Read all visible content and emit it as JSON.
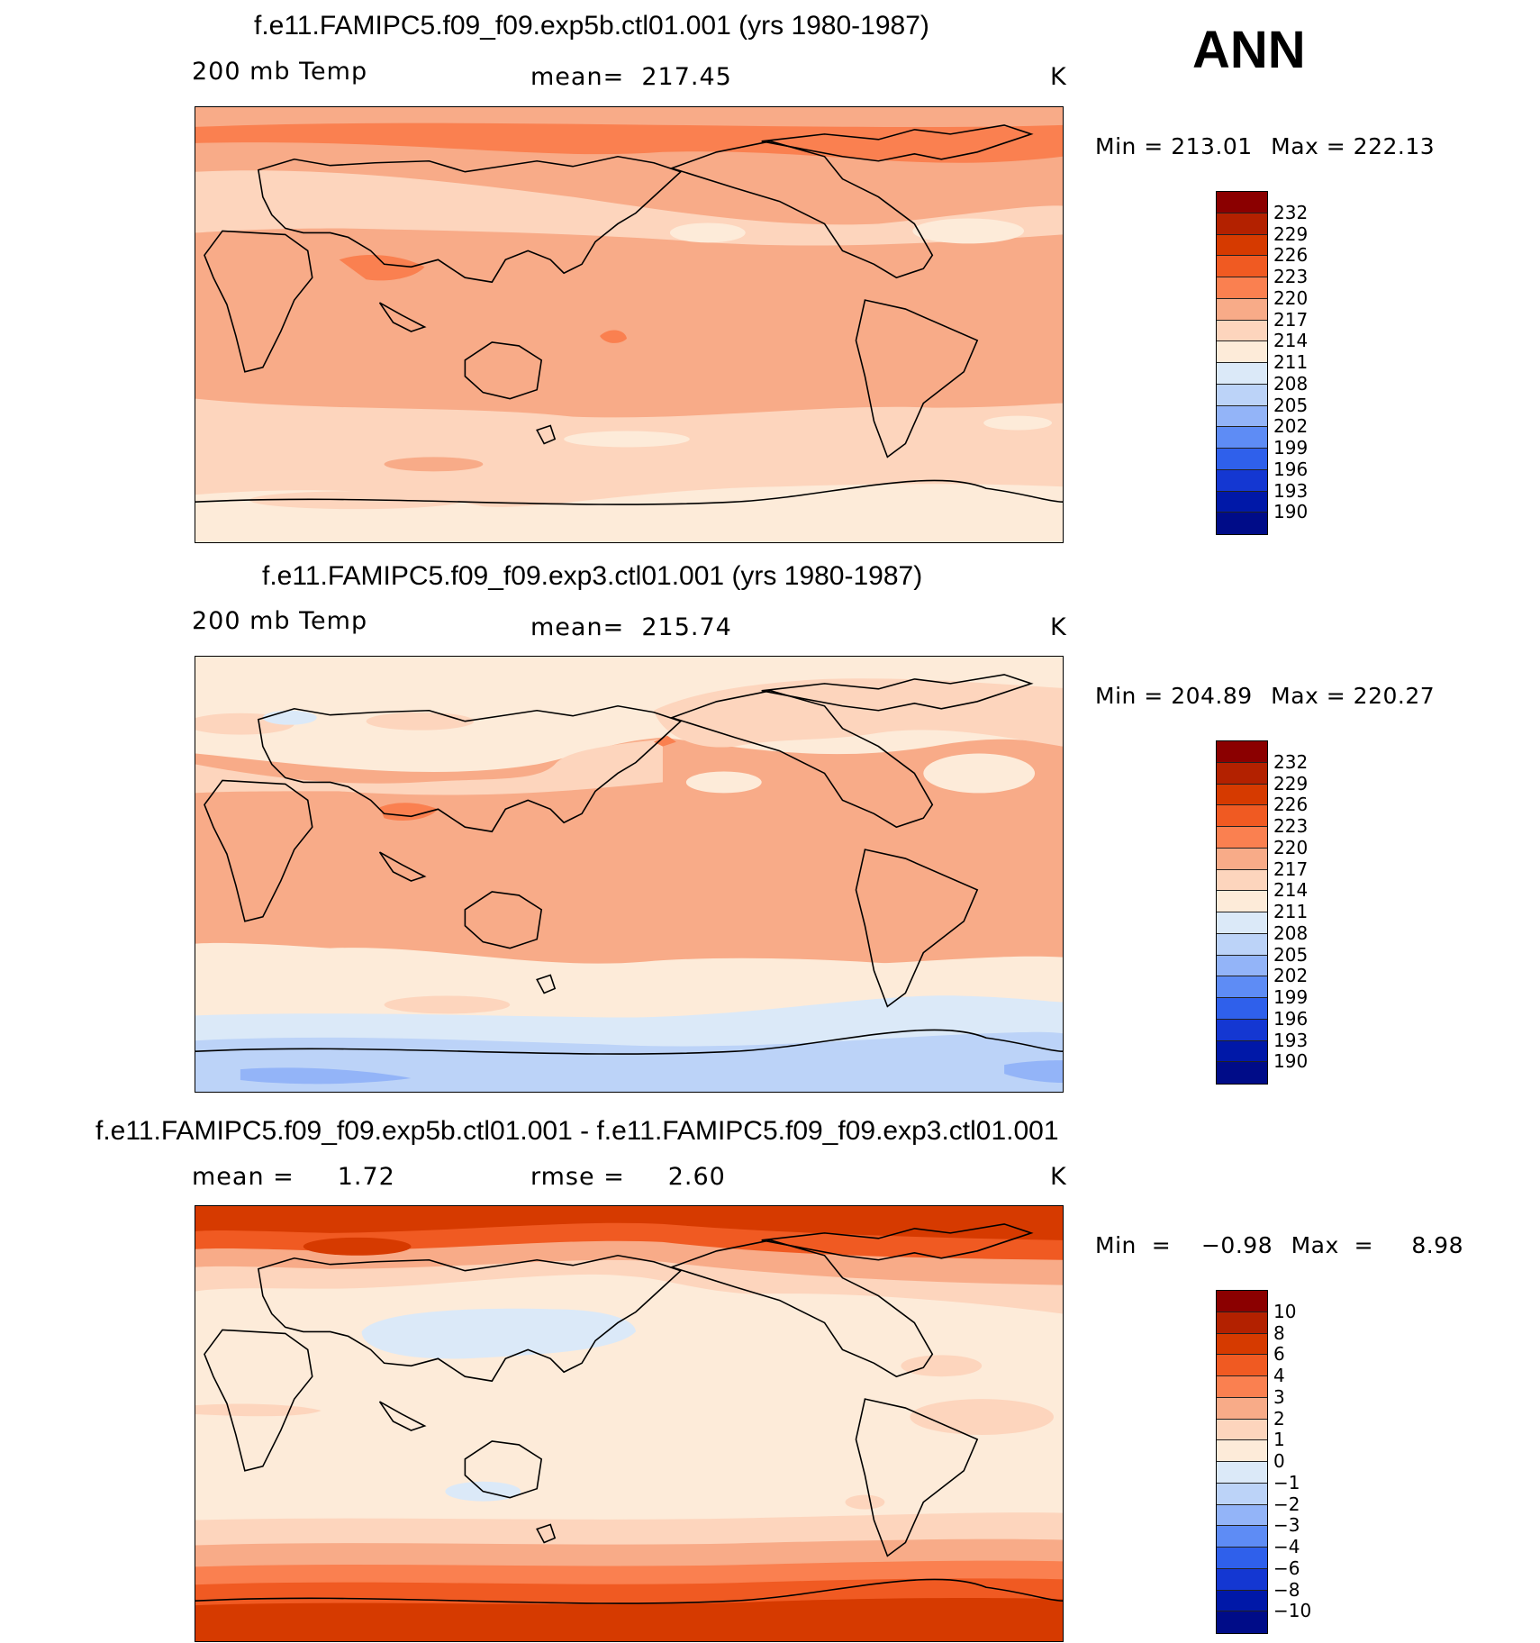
{
  "season": "ANN",
  "units": "K",
  "panels": [
    {
      "title": "f.e11.FAMIPC5.f09_f09.exp5b.ctl01.001 (yrs 1980-1987)",
      "variable": "200 mb Temp",
      "stat": "mean=  217.45",
      "units": "K",
      "min_label": "Min  =  213.01",
      "max_label": "Max  =  222.13",
      "colorbar_labels": [
        "232",
        "229",
        "226",
        "223",
        "220",
        "217",
        "214",
        "211",
        "208",
        "205",
        "202",
        "199",
        "196",
        "193",
        "190"
      ],
      "colorbar_colors": [
        "#8b0000",
        "#b32100",
        "#d63a00",
        "#f05a22",
        "#fa8050",
        "#f8ab88",
        "#fdd5bd",
        "#fdebd9",
        "#dbe9f8",
        "#bcd3f8",
        "#93b4f8",
        "#5e8cf5",
        "#2f60eb",
        "#1437d2",
        "#0018a8",
        "#000c88"
      ]
    },
    {
      "title": "f.e11.FAMIPC5.f09_f09.exp3.ctl01.001 (yrs 1980-1987)",
      "variable": "200 mb Temp",
      "stat": "mean=  215.74",
      "units": "K",
      "min_label": "Min  =  204.89",
      "max_label": "Max  =  220.27",
      "colorbar_labels": [
        "232",
        "229",
        "226",
        "223",
        "220",
        "217",
        "214",
        "211",
        "208",
        "205",
        "202",
        "199",
        "196",
        "193",
        "190"
      ],
      "colorbar_colors": [
        "#8b0000",
        "#b32100",
        "#d63a00",
        "#f05a22",
        "#fa8050",
        "#f8ab88",
        "#fdd5bd",
        "#fdebd9",
        "#dbe9f8",
        "#bcd3f8",
        "#93b4f8",
        "#5e8cf5",
        "#2f60eb",
        "#1437d2",
        "#0018a8",
        "#000c88"
      ]
    },
    {
      "title": "f.e11.FAMIPC5.f09_f09.exp5b.ctl01.001 - f.e11.FAMIPC5.f09_f09.exp3.ctl01.001",
      "variable": "mean =     1.72",
      "stat": "rmse =     2.60",
      "units": "K",
      "min_label": "Min  =    −0.98",
      "max_label": "Max  =     8.98",
      "colorbar_labels": [
        "10",
        "8",
        "6",
        "4",
        "3",
        "2",
        "1",
        "0",
        "−1",
        "−2",
        "−3",
        "−4",
        "−6",
        "−8",
        "−10"
      ],
      "colorbar_colors": [
        "#8b0000",
        "#b32100",
        "#d63a00",
        "#f05a22",
        "#fa8050",
        "#f8ab88",
        "#fdd5bd",
        "#fdebd9",
        "#dbe9f8",
        "#bcd3f8",
        "#93b4f8",
        "#5e8cf5",
        "#2f60eb",
        "#1437d2",
        "#0018a8",
        "#000c88"
      ]
    }
  ]
}
